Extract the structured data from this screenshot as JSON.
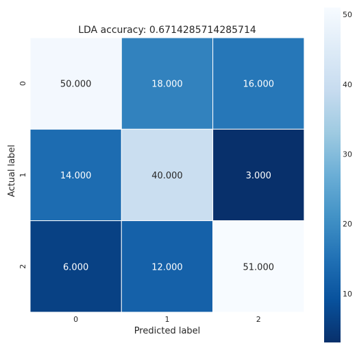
{
  "chart_data": {
    "type": "heatmap",
    "title": "LDA accuracy: 0.6714285714285714",
    "xlabel": "Predicted label",
    "ylabel": "Actual label",
    "x_categories": [
      "0",
      "1",
      "2"
    ],
    "y_categories": [
      "0",
      "1",
      "2"
    ],
    "values": [
      [
        50,
        18,
        16
      ],
      [
        14,
        40,
        3
      ],
      [
        6,
        12,
        51
      ]
    ],
    "cell_labels": [
      [
        "50.000",
        "18.000",
        "16.000"
      ],
      [
        "14.000",
        "40.000",
        "3.000"
      ],
      [
        "6.000",
        "12.000",
        "51.000"
      ]
    ],
    "colormap": "Blues_r",
    "vmin": 3,
    "vmax": 51,
    "colorbar_ticks": [
      10,
      20,
      30,
      40,
      50
    ],
    "colorbar_stops": [
      "#08306b",
      "#08519c",
      "#2171b5",
      "#4292c6",
      "#6baed6",
      "#9ecae1",
      "#c6dbef",
      "#deebf7",
      "#f7fbff"
    ],
    "grid": false
  }
}
